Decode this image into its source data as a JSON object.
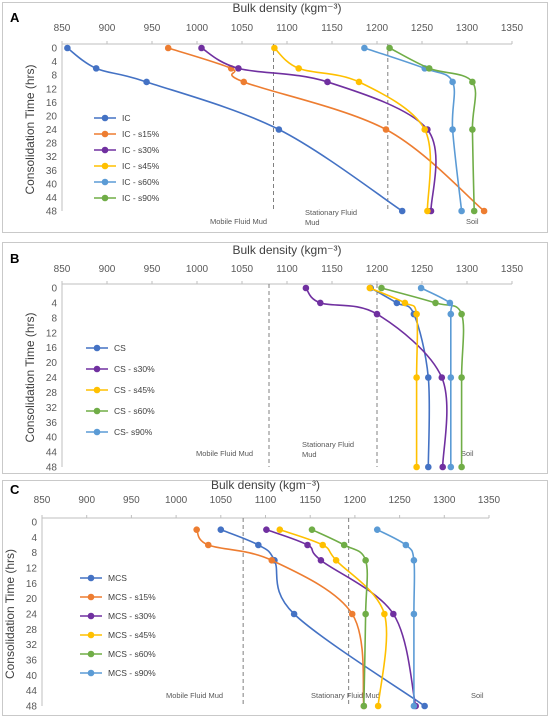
{
  "chart_data": [
    {
      "panel": "A",
      "type": "line",
      "xlabel": "Bulk density (kgm⁻³)",
      "ylabel": "Consolidation Time (hrs)",
      "xlim": [
        850,
        1350
      ],
      "xticks": [
        850,
        900,
        950,
        1000,
        1050,
        1100,
        1150,
        1200,
        1250,
        1300,
        1350
      ],
      "ylim": [
        0,
        48
      ],
      "yticks": [
        0,
        4,
        8,
        12,
        16,
        20,
        24,
        28,
        32,
        36,
        40,
        44,
        48
      ],
      "x_axis_position": "top",
      "y_axis": "inverted",
      "grid": false,
      "legend_position": "left",
      "reference_lines": [
        1085,
        1212
      ],
      "zones": [
        "Mobile Fluid Mud",
        "Stationary Fluid Mud",
        "Soil"
      ],
      "series": [
        {
          "name": "IC",
          "color": "#4472C4",
          "points": [
            [
              856,
              0
            ],
            [
              888,
              6
            ],
            [
              944,
              10
            ],
            [
              1091,
              24
            ],
            [
              1228,
              48
            ]
          ]
        },
        {
          "name": "IC - s15%",
          "color": "#ED7D31",
          "points": [
            [
              968,
              0
            ],
            [
              1038,
              6
            ],
            [
              1052,
              10
            ],
            [
              1210,
              24
            ],
            [
              1319,
              48
            ]
          ]
        },
        {
          "name": "IC - s30%",
          "color": "#7030A0",
          "points": [
            [
              1005,
              0
            ],
            [
              1046,
              6
            ],
            [
              1145,
              10
            ],
            [
              1256,
              24
            ],
            [
              1260,
              48
            ]
          ]
        },
        {
          "name": "IC - s45%",
          "color": "#FFC000",
          "points": [
            [
              1086,
              0
            ],
            [
              1113,
              6
            ],
            [
              1180,
              10
            ],
            [
              1253,
              24
            ],
            [
              1256,
              48
            ]
          ]
        },
        {
          "name": "IC - s60%",
          "color": "#5B9BD5",
          "points": [
            [
              1186,
              0
            ],
            [
              1253,
              6
            ],
            [
              1284,
              10
            ],
            [
              1284,
              24
            ],
            [
              1294,
              48
            ]
          ]
        },
        {
          "name": "IC - s90%",
          "color": "#70AD47",
          "points": [
            [
              1214,
              0
            ],
            [
              1258,
              6
            ],
            [
              1306,
              10
            ],
            [
              1306,
              24
            ],
            [
              1308,
              48
            ]
          ]
        }
      ]
    },
    {
      "panel": "B",
      "type": "line",
      "xlabel": "Bulk density (kgm⁻³)",
      "ylabel": "Consolidation Time (hrs)",
      "xlim": [
        850,
        1350
      ],
      "xticks": [
        850,
        900,
        950,
        1000,
        1050,
        1100,
        1150,
        1200,
        1250,
        1300,
        1350
      ],
      "ylim": [
        0,
        48
      ],
      "yticks": [
        0,
        4,
        8,
        12,
        16,
        20,
        24,
        28,
        32,
        36,
        40,
        44,
        48
      ],
      "x_axis_position": "top",
      "y_axis": "inverted",
      "grid": false,
      "legend_position": "left",
      "reference_lines": [
        1080,
        1200
      ],
      "zones": [
        "Mobile Fluid Mud",
        "Stationary Fluid Mud",
        "Soil"
      ],
      "series": [
        {
          "name": "CS",
          "color": "#4472C4",
          "points": [
            [
              1193,
              0
            ],
            [
              1222,
              4
            ],
            [
              1241,
              7
            ],
            [
              1257,
              24
            ],
            [
              1257,
              48
            ]
          ]
        },
        {
          "name": "CS - s30%",
          "color": "#7030A0",
          "points": [
            [
              1121,
              0
            ],
            [
              1137,
              4
            ],
            [
              1200,
              7
            ],
            [
              1272,
              24
            ],
            [
              1273,
              48
            ]
          ]
        },
        {
          "name": "CS - s45%",
          "color": "#FFC000",
          "points": [
            [
              1192,
              0
            ],
            [
              1231,
              4
            ],
            [
              1244,
              7
            ],
            [
              1244,
              24
            ],
            [
              1244,
              48
            ]
          ]
        },
        {
          "name": "CS - s60%",
          "color": "#70AD47",
          "points": [
            [
              1205,
              0
            ],
            [
              1265,
              4
            ],
            [
              1294,
              7
            ],
            [
              1294,
              24
            ],
            [
              1294,
              48
            ]
          ]
        },
        {
          "name": "CS- s90%",
          "color": "#5B9BD5",
          "points": [
            [
              1249,
              0
            ],
            [
              1281,
              4
            ],
            [
              1282,
              7
            ],
            [
              1282,
              24
            ],
            [
              1282,
              48
            ]
          ]
        }
      ]
    },
    {
      "panel": "C",
      "type": "line",
      "xlabel": "Bulk density (kgm⁻³)",
      "ylabel": "Consolidation Time (hrs)",
      "xlim": [
        850,
        1350
      ],
      "xticks": [
        850,
        900,
        950,
        1000,
        1050,
        1100,
        1150,
        1200,
        1250,
        1300,
        1350
      ],
      "ylim": [
        0,
        48
      ],
      "yticks": [
        0,
        4,
        8,
        12,
        16,
        20,
        24,
        28,
        32,
        36,
        40,
        44,
        48
      ],
      "x_axis_position": "top",
      "y_axis": "inverted",
      "grid": false,
      "legend_position": "left",
      "reference_lines": [
        1075,
        1193
      ],
      "zones": [
        "Mobile Fluid Mud",
        "Stationary Fluid Mud",
        "Soil"
      ],
      "series": [
        {
          "name": "MCS",
          "color": "#4472C4",
          "points": [
            [
              1050,
              2
            ],
            [
              1092,
              6
            ],
            [
              1110,
              10
            ],
            [
              1132,
              24
            ],
            [
              1278,
              48
            ]
          ]
        },
        {
          "name": "MCS - s15%",
          "color": "#ED7D31",
          "points": [
            [
              1023,
              2
            ],
            [
              1036,
              6
            ],
            [
              1107,
              10
            ],
            [
              1197,
              24
            ],
            [
              1210,
              48
            ]
          ]
        },
        {
          "name": "MCS - s30%",
          "color": "#7030A0",
          "points": [
            [
              1101,
              2
            ],
            [
              1147,
              6
            ],
            [
              1162,
              10
            ],
            [
              1243,
              24
            ],
            [
              1268,
              48
            ]
          ]
        },
        {
          "name": "MCS - s45%",
          "color": "#FFC000",
          "points": [
            [
              1116,
              2
            ],
            [
              1164,
              6
            ],
            [
              1179,
              10
            ],
            [
              1233,
              24
            ],
            [
              1226,
              48
            ]
          ]
        },
        {
          "name": "MCS - s60%",
          "color": "#70AD47",
          "points": [
            [
              1152,
              2
            ],
            [
              1188,
              6
            ],
            [
              1212,
              10
            ],
            [
              1212,
              24
            ],
            [
              1210,
              48
            ]
          ]
        },
        {
          "name": "MCS - s90%",
          "color": "#5B9BD5",
          "points": [
            [
              1225,
              2
            ],
            [
              1257,
              6
            ],
            [
              1266,
              10
            ],
            [
              1266,
              24
            ],
            [
              1266,
              48
            ]
          ]
        }
      ]
    }
  ]
}
